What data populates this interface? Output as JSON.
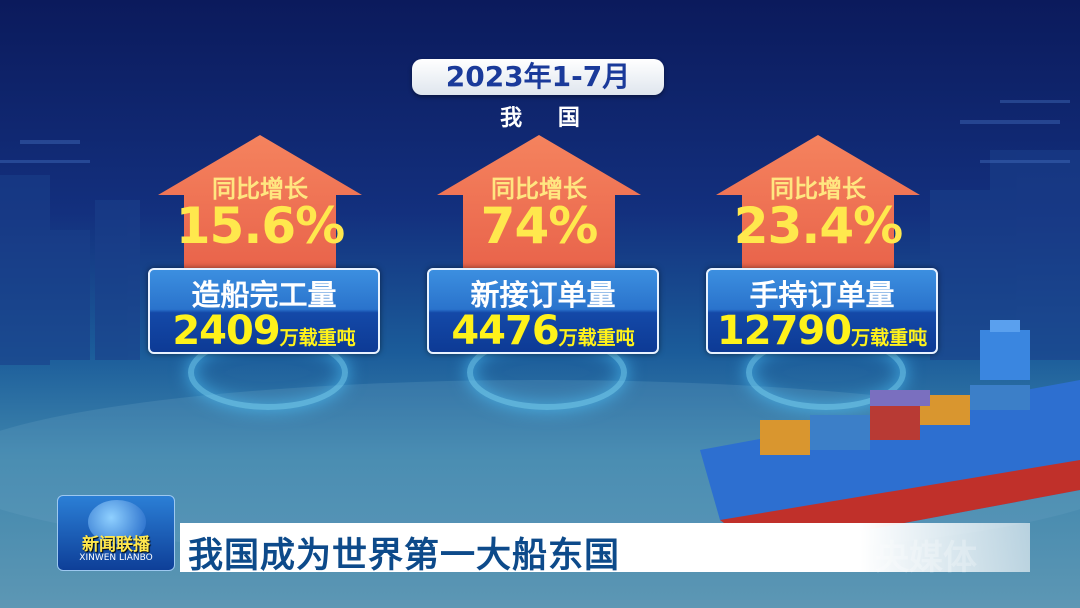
{
  "header": {
    "period": "2023年1-7月",
    "region": "我 国"
  },
  "cards": [
    {
      "growth_label": "同比增长",
      "growth_value": "15.6%",
      "metric": "造船完工量",
      "value": "2409",
      "unit": "万载重吨"
    },
    {
      "growth_label": "同比增长",
      "growth_value": "74%",
      "metric": "新接订单量",
      "value": "4476",
      "unit": "万载重吨"
    },
    {
      "growth_label": "同比增长",
      "growth_value": "23.4%",
      "metric": "手持订单量",
      "value": "12790",
      "unit": "万载重吨"
    }
  ],
  "program": {
    "name_cn": "新闻联播",
    "name_en": "XINWEN LIANBO"
  },
  "headline": "我国成为世界第一大船东国",
  "watermark": "央媒体",
  "colors": {
    "accent_yellow": "#fff21a",
    "headline_blue": "#0d4a8a",
    "arrow_red": "#e8624a"
  }
}
